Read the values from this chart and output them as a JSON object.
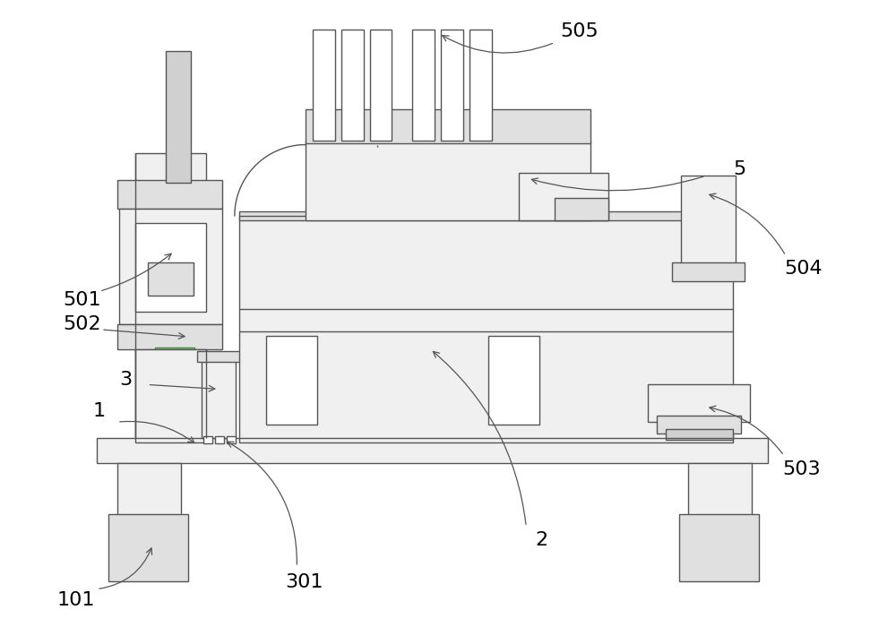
{
  "bg_color": "#ffffff",
  "line_color": "#555555",
  "lw": 1.0,
  "fig_width": 10.0,
  "fig_height": 7.19,
  "label_fontsize": 16
}
